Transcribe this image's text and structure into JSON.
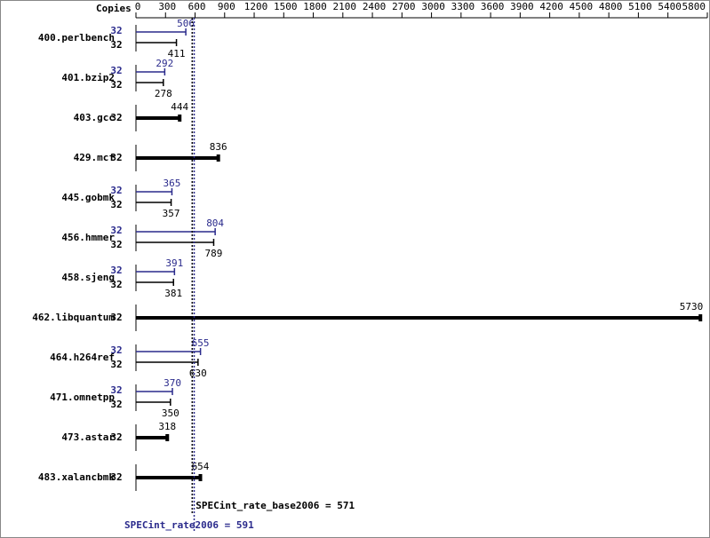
{
  "chart_data": {
    "type": "bar",
    "orientation": "horizontal",
    "copies_label": "Copies",
    "categories": [
      "400.perlbench",
      "401.bzip2",
      "403.gcc",
      "429.mcf",
      "445.gobmk",
      "456.hmmer",
      "458.sjeng",
      "462.libquantum",
      "464.h264ref",
      "471.omnetpp",
      "473.astar",
      "483.xalancbmk"
    ],
    "series": [
      {
        "color": "#2a2a8c",
        "values": [
          506,
          292,
          null,
          null,
          365,
          804,
          391,
          null,
          655,
          370,
          null,
          null
        ],
        "copies": [
          32,
          32,
          null,
          null,
          32,
          32,
          32,
          null,
          32,
          32,
          null,
          null
        ]
      },
      {
        "color": "#000000",
        "values": [
          411,
          278,
          444,
          836,
          357,
          789,
          381,
          5730,
          630,
          350,
          318,
          654
        ],
        "copies": [
          32,
          32,
          32,
          32,
          32,
          32,
          32,
          32,
          32,
          32,
          32,
          32
        ]
      }
    ],
    "xlim": [
      0,
      5800
    ],
    "xticks": [
      0,
      300,
      600,
      900,
      1200,
      1500,
      1800,
      2100,
      2400,
      2700,
      3000,
      3300,
      3600,
      3900,
      4200,
      4500,
      4800,
      5100,
      5400,
      5800
    ],
    "reference_lines": [
      {
        "label": "SPECint_rate_base2006 = 571",
        "value": 571,
        "color": "#000000"
      },
      {
        "label": "SPECint_rate2006 = 591",
        "value": 591,
        "color": "#2a2a8c"
      }
    ]
  }
}
